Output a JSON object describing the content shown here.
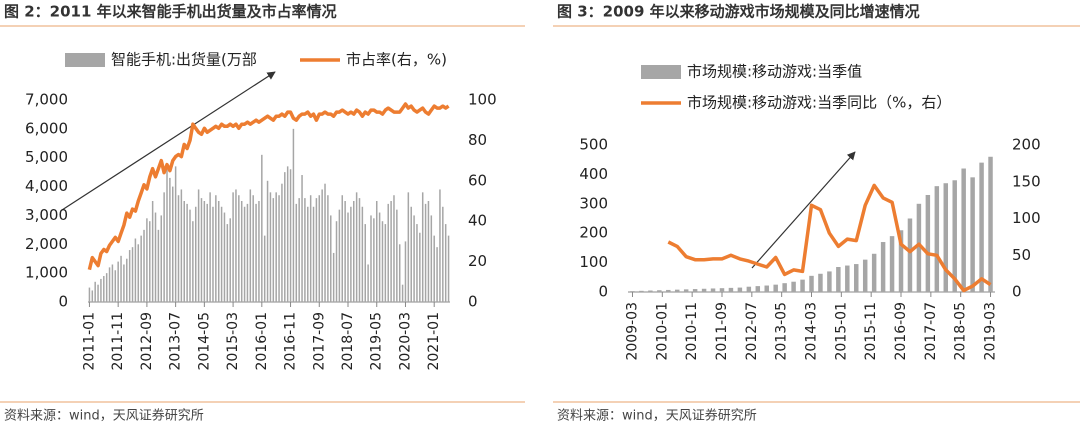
{
  "chart_data": [
    {
      "type": "bar_line",
      "title": "图 2：2011 年以来智能手机出货量及市占率情况",
      "source": "资料来源：wind，天风证券研究所",
      "x": [
        "2011-01",
        "2011-02",
        "2011-03",
        "2011-04",
        "2011-05",
        "2011-06",
        "2011-07",
        "2011-08",
        "2011-09",
        "2011-10",
        "2011-11",
        "2011-12",
        "2012-01",
        "2012-02",
        "2012-03",
        "2012-04",
        "2012-05",
        "2012-06",
        "2012-07",
        "2012-08",
        "2012-09",
        "2012-10",
        "2012-11",
        "2012-12",
        "2013-01",
        "2013-02",
        "2013-03",
        "2013-04",
        "2013-05",
        "2013-06",
        "2013-07",
        "2013-08",
        "2013-09",
        "2013-10",
        "2013-11",
        "2013-12",
        "2014-01",
        "2014-02",
        "2014-03",
        "2014-04",
        "2014-05",
        "2014-06",
        "2014-07",
        "2014-08",
        "2014-09",
        "2014-10",
        "2014-11",
        "2014-12",
        "2015-01",
        "2015-02",
        "2015-03",
        "2015-04",
        "2015-05",
        "2015-06",
        "2015-07",
        "2015-08",
        "2015-09",
        "2015-10",
        "2015-11",
        "2015-12",
        "2016-01",
        "2016-02",
        "2016-03",
        "2016-04",
        "2016-05",
        "2016-06",
        "2016-07",
        "2016-08",
        "2016-09",
        "2016-10",
        "2016-11",
        "2016-12",
        "2017-01",
        "2017-02",
        "2017-03",
        "2017-04",
        "2017-05",
        "2017-06",
        "2017-07",
        "2017-08",
        "2017-09",
        "2017-10",
        "2017-11",
        "2017-12",
        "2018-01",
        "2018-02",
        "2018-03",
        "2018-04",
        "2018-05",
        "2018-06",
        "2018-07",
        "2018-08",
        "2018-09",
        "2018-10",
        "2018-11",
        "2018-12",
        "2019-01",
        "2019-02",
        "2019-03",
        "2019-04",
        "2019-05",
        "2019-06",
        "2019-07",
        "2019-08",
        "2019-09",
        "2019-10",
        "2019-11",
        "2019-12",
        "2020-01",
        "2020-02",
        "2020-03",
        "2020-04",
        "2020-05",
        "2020-06",
        "2020-07",
        "2020-08",
        "2020-09",
        "2020-10",
        "2020-11",
        "2020-12",
        "2021-01",
        "2021-02",
        "2021-03",
        "2021-04",
        "2021-05",
        "2021-06"
      ],
      "xticks": [
        "2011-01",
        "2011-11",
        "2012-09",
        "2013-07",
        "2014-05",
        "2015-03",
        "2016-01",
        "2016-11",
        "2017-09",
        "2018-07",
        "2019-05",
        "2020-03",
        "2021-01"
      ],
      "series": [
        {
          "name": "智能手机:出货量(万部",
          "color": "#a6a6a6",
          "kind": "bar",
          "axis": "y",
          "values": [
            500,
            400,
            700,
            600,
            800,
            900,
            1000,
            1200,
            1300,
            1100,
            1400,
            1600,
            1300,
            1500,
            1800,
            1900,
            2200,
            2000,
            2300,
            2500,
            2900,
            2800,
            3500,
            3100,
            2500,
            3000,
            3800,
            4600,
            4300,
            4000,
            4700,
            3700,
            3900,
            3500,
            3400,
            3200,
            2800,
            3300,
            3900,
            3600,
            3500,
            3400,
            3800,
            3300,
            3700,
            3500,
            3300,
            3100,
            2700,
            2900,
            3800,
            3900,
            3700,
            3500,
            3300,
            3400,
            3900,
            3700,
            3400,
            3500,
            5100,
            2300,
            4200,
            3800,
            3600,
            3800,
            3700,
            4100,
            4500,
            4700,
            4600,
            6000,
            3400,
            3600,
            4400,
            3600,
            3300,
            3700,
            3300,
            3600,
            3700,
            3900,
            4100,
            3700,
            3000,
            1700,
            2800,
            3200,
            3700,
            3500,
            3100,
            3300,
            3500,
            3800,
            3600,
            3300,
            2700,
            1300,
            3000,
            2900,
            3500,
            3100,
            2800,
            2700,
            3400,
            3500,
            3700,
            3200,
            2000,
            600,
            2100,
            3800,
            3300,
            3000,
            2700,
            2400,
            3800,
            3400,
            3500,
            3000,
            2300,
            1900,
            3900,
            3300,
            2700,
            2300
          ]
        },
        {
          "name": "市占率(右，%)",
          "color": "#ed7d31",
          "kind": "line",
          "axis": "y2",
          "values": [
            16,
            22,
            20,
            18,
            24,
            26,
            25,
            28,
            30,
            32,
            30,
            34,
            38,
            44,
            42,
            46,
            45,
            50,
            54,
            58,
            56,
            62,
            66,
            62,
            66,
            70,
            64,
            68,
            65,
            70,
            72,
            73,
            72,
            78,
            76,
            80,
            88,
            86,
            84,
            83,
            86,
            84,
            85,
            86,
            87,
            86,
            88,
            87,
            87,
            88,
            87,
            88,
            86,
            88,
            88,
            89,
            88,
            89,
            90,
            89,
            90,
            91,
            92,
            91,
            90,
            92,
            92,
            93,
            92,
            94,
            94,
            91,
            90,
            92,
            93,
            93,
            94,
            92,
            93,
            90,
            93,
            93,
            94,
            93,
            93,
            92,
            94,
            94,
            95,
            94,
            93,
            94,
            93,
            95,
            94,
            92,
            94,
            93,
            95,
            95,
            94,
            94,
            93,
            95,
            96,
            95,
            94,
            94,
            94,
            96,
            98,
            96,
            97,
            95,
            94,
            95,
            96,
            94,
            93,
            95,
            97,
            96,
            96,
            97,
            96,
            97
          ]
        }
      ],
      "ylim": [
        0,
        7000
      ],
      "yticks": [
        0,
        {
          "value": 1000,
          "label": "1,000"
        },
        {
          "value": 2000,
          "label": "2,000"
        },
        {
          "value": 3000,
          "label": "3,000"
        },
        {
          "value": 4000,
          "label": "4,000"
        },
        {
          "value": 5000,
          "label": "5,000"
        },
        {
          "value": 6000,
          "label": "6,000"
        },
        {
          "value": 7000,
          "label": "7,000"
        }
      ],
      "y2lim": [
        0,
        100
      ],
      "y2ticks": [
        0,
        20,
        40,
        60,
        80,
        100
      ],
      "grid": false
    },
    {
      "type": "bar_line",
      "title": "图 3：2009 年以来移动游戏市场规模及同比增速情况",
      "source": "资料来源：wind，天风证券研究所",
      "x": [
        "2009-03",
        "2009-06",
        "2009-09",
        "2009-12",
        "2010-03",
        "2010-06",
        "2010-09",
        "2010-12",
        "2011-03",
        "2011-06",
        "2011-09",
        "2011-12",
        "2012-03",
        "2012-06",
        "2012-09",
        "2012-12",
        "2013-03",
        "2013-06",
        "2013-09",
        "2013-12",
        "2014-03",
        "2014-06",
        "2014-09",
        "2014-12",
        "2015-03",
        "2015-06",
        "2015-09",
        "2015-12",
        "2016-03",
        "2016-06",
        "2016-09",
        "2016-12",
        "2017-03",
        "2017-06",
        "2017-09",
        "2017-12",
        "2018-03",
        "2018-06",
        "2018-09",
        "2018-12",
        "2019-03"
      ],
      "xticks": [
        "2009-03",
        "2010-01",
        "2010-11",
        "2011-09",
        "2012-07",
        "2013-05",
        "2014-03",
        "2015-01",
        "2015-11",
        "2016-09",
        "2017-07",
        "2018-05",
        "2019-03"
      ],
      "series": [
        {
          "name": "市场规模:移动游戏:当季值",
          "color": "#a6a6a6",
          "kind": "bar",
          "axis": "y",
          "values": [
            3,
            4,
            5,
            6,
            7,
            8,
            9,
            10,
            11,
            12,
            13,
            14,
            15,
            18,
            20,
            22,
            25,
            30,
            35,
            42,
            55,
            62,
            70,
            85,
            90,
            95,
            110,
            130,
            170,
            190,
            210,
            250,
            300,
            330,
            360,
            370,
            380,
            420,
            390,
            440,
            460
          ]
        },
        {
          "name": "市场规模:移动游戏:当季同比（%，右）",
          "color": "#ed7d31",
          "kind": "line",
          "axis": "y2",
          "values": [
            null,
            null,
            null,
            null,
            68,
            62,
            48,
            44,
            44,
            45,
            45,
            50,
            45,
            42,
            38,
            34,
            47,
            24,
            30,
            28,
            118,
            112,
            80,
            62,
            72,
            70,
            118,
            145,
            128,
            122,
            65,
            55,
            65,
            52,
            50,
            30,
            18,
            2,
            8,
            18,
            10
          ]
        }
      ],
      "ylim": [
        0,
        500
      ],
      "yticks": [
        0,
        100,
        200,
        300,
        400,
        500
      ],
      "y2lim": [
        0,
        200
      ],
      "y2ticks": [
        0,
        50,
        100,
        150,
        200
      ],
      "grid": false
    }
  ]
}
